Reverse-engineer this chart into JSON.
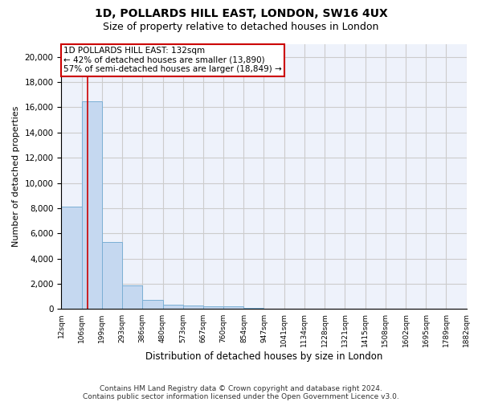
{
  "title1": "1D, POLLARDS HILL EAST, LONDON, SW16 4UX",
  "title2": "Size of property relative to detached houses in London",
  "xlabel": "Distribution of detached houses by size in London",
  "ylabel": "Number of detached properties",
  "bar_values": [
    8100,
    16500,
    5300,
    1850,
    700,
    350,
    280,
    220,
    200,
    100,
    60,
    40,
    25,
    15,
    10,
    8,
    6,
    5,
    4,
    3
  ],
  "bin_edges": [
    12,
    106,
    199,
    293,
    386,
    480,
    573,
    667,
    760,
    854,
    947,
    1041,
    1134,
    1228,
    1321,
    1415,
    1508,
    1602,
    1695,
    1789,
    1882
  ],
  "tick_labels": [
    "12sqm",
    "106sqm",
    "199sqm",
    "293sqm",
    "386sqm",
    "480sqm",
    "573sqm",
    "667sqm",
    "760sqm",
    "854sqm",
    "947sqm",
    "1041sqm",
    "1134sqm",
    "1228sqm",
    "1321sqm",
    "1415sqm",
    "1508sqm",
    "1602sqm",
    "1695sqm",
    "1789sqm",
    "1882sqm"
  ],
  "bar_color": "#c5d8f0",
  "bar_edge_color": "#7bafd4",
  "vline_x": 132,
  "vline_color": "#cc0000",
  "annotation_box_text": "1D POLLARDS HILL EAST: 132sqm\n← 42% of detached houses are smaller (13,890)\n57% of semi-detached houses are larger (18,849) →",
  "annotation_box_color": "#cc0000",
  "grid_color": "#cccccc",
  "bg_color": "#eef2fb",
  "ylim": [
    0,
    21000
  ],
  "yticks": [
    0,
    2000,
    4000,
    6000,
    8000,
    10000,
    12000,
    14000,
    16000,
    18000,
    20000
  ],
  "footnote1": "Contains HM Land Registry data © Crown copyright and database right 2024.",
  "footnote2": "Contains public sector information licensed under the Open Government Licence v3.0.",
  "title1_fontsize": 10,
  "title2_fontsize": 9,
  "xlabel_fontsize": 8.5,
  "ylabel_fontsize": 8,
  "tick_fontsize": 6.5,
  "ytick_fontsize": 7.5,
  "annotation_fontsize": 7.5,
  "footnote_fontsize": 6.5
}
